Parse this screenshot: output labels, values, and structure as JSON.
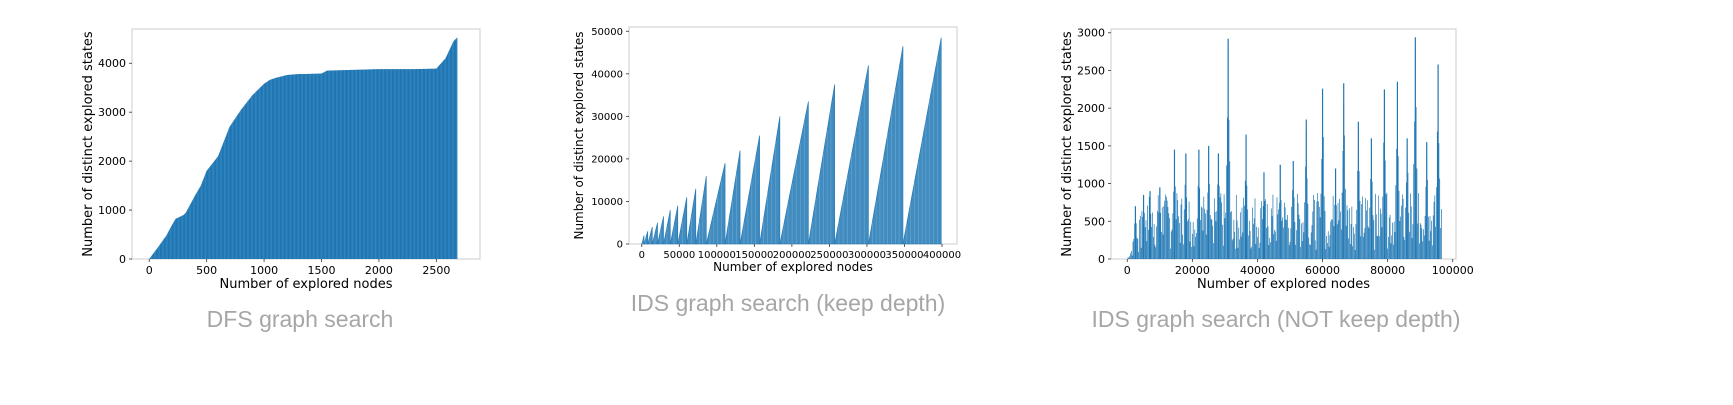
{
  "colors": {
    "bar": "#1f77b4",
    "frame": "#cccccc",
    "caption": "#a6a6a6"
  },
  "captions": [
    "DFS graph search",
    "IDS graph search (keep depth)",
    "IDS graph search (NOT keep depth)"
  ],
  "chart_data": [
    {
      "type": "bar",
      "title": "",
      "xlabel": "Number of explored nodes",
      "ylabel": "Number of distinct explored states",
      "xlim": [
        -150,
        2880
      ],
      "ylim": [
        0,
        4700
      ],
      "xticks": [
        0,
        500,
        1000,
        1500,
        2000,
        2500
      ],
      "yticks": [
        0,
        1000,
        2000,
        3000,
        4000
      ],
      "grid": false,
      "x": [
        0,
        80,
        150,
        200,
        230,
        300,
        320,
        400,
        450,
        500,
        550,
        600,
        700,
        800,
        900,
        1000,
        1050,
        1100,
        1200,
        1300,
        1350,
        1500,
        1550,
        1700,
        2000,
        2300,
        2500,
        2580,
        2650,
        2680
      ],
      "values": [
        0,
        250,
        480,
        700,
        820,
        900,
        950,
        1300,
        1500,
        1800,
        1950,
        2100,
        2700,
        3050,
        3350,
        3580,
        3660,
        3700,
        3760,
        3780,
        3780,
        3790,
        3850,
        3860,
        3880,
        3880,
        3890,
        4100,
        4450,
        4520
      ]
    },
    {
      "type": "bar",
      "title": "",
      "xlabel": "Number of explored nodes",
      "ylabel": "Number of distinct explored states",
      "xlim": [
        -17000,
        420000
      ],
      "ylim": [
        0,
        51000
      ],
      "xticks": [
        0,
        50000,
        100000,
        150000,
        200000,
        250000,
        300000,
        350000,
        400000
      ],
      "yticks": [
        0,
        10000,
        20000,
        30000,
        40000,
        50000
      ],
      "grid": false,
      "iterations": [
        {
          "start": 0,
          "end": 3000,
          "peak": 2000
        },
        {
          "start": 3000,
          "end": 8000,
          "peak": 3000
        },
        {
          "start": 8000,
          "end": 14000,
          "peak": 4000
        },
        {
          "start": 14000,
          "end": 21000,
          "peak": 5000
        },
        {
          "start": 21000,
          "end": 29000,
          "peak": 6500
        },
        {
          "start": 29000,
          "end": 38000,
          "peak": 8000
        },
        {
          "start": 38000,
          "end": 48000,
          "peak": 9000
        },
        {
          "start": 48000,
          "end": 60000,
          "peak": 11000
        },
        {
          "start": 60000,
          "end": 72000,
          "peak": 13000
        },
        {
          "start": 72000,
          "end": 86000,
          "peak": 16000
        },
        {
          "start": 86000,
          "end": 111000,
          "peak": 19000
        },
        {
          "start": 111000,
          "end": 131000,
          "peak": 22000
        },
        {
          "start": 131000,
          "end": 157000,
          "peak": 25500
        },
        {
          "start": 157000,
          "end": 184000,
          "peak": 30000
        },
        {
          "start": 184000,
          "end": 222000,
          "peak": 33500
        },
        {
          "start": 222000,
          "end": 257000,
          "peak": 37500
        },
        {
          "start": 257000,
          "end": 302000,
          "peak": 42000
        },
        {
          "start": 302000,
          "end": 348000,
          "peak": 46500
        },
        {
          "start": 348000,
          "end": 399000,
          "peak": 48500
        }
      ]
    },
    {
      "type": "bar",
      "title": "",
      "xlabel": "Number of explored nodes",
      "ylabel": "Number of distinct explored states",
      "xlim": [
        -5000,
        101000
      ],
      "ylim": [
        0,
        3050
      ],
      "xticks": [
        0,
        20000,
        40000,
        60000,
        80000,
        100000
      ],
      "yticks": [
        0,
        500,
        1000,
        1500,
        2000,
        2500,
        3000
      ],
      "grid": false,
      "x_max": 96500,
      "baseline": 800,
      "spikes": [
        {
          "x": 2500,
          "value": 700
        },
        {
          "x": 5000,
          "value": 850
        },
        {
          "x": 7000,
          "value": 900
        },
        {
          "x": 10000,
          "value": 950
        },
        {
          "x": 14500,
          "value": 1450
        },
        {
          "x": 18000,
          "value": 1400
        },
        {
          "x": 22000,
          "value": 1450
        },
        {
          "x": 25000,
          "value": 1500
        },
        {
          "x": 28000,
          "value": 1400
        },
        {
          "x": 31000,
          "value": 2920
        },
        {
          "x": 36500,
          "value": 1650
        },
        {
          "x": 42000,
          "value": 1150
        },
        {
          "x": 47000,
          "value": 1250
        },
        {
          "x": 51000,
          "value": 1300
        },
        {
          "x": 55000,
          "value": 1850
        },
        {
          "x": 60000,
          "value": 2260
        },
        {
          "x": 64000,
          "value": 1200
        },
        {
          "x": 66500,
          "value": 2330
        },
        {
          "x": 71000,
          "value": 1820
        },
        {
          "x": 75000,
          "value": 1600
        },
        {
          "x": 79000,
          "value": 2250
        },
        {
          "x": 83000,
          "value": 2350
        },
        {
          "x": 86000,
          "value": 1600
        },
        {
          "x": 88500,
          "value": 2940
        },
        {
          "x": 92000,
          "value": 1550
        },
        {
          "x": 95500,
          "value": 2580
        }
      ]
    }
  ]
}
